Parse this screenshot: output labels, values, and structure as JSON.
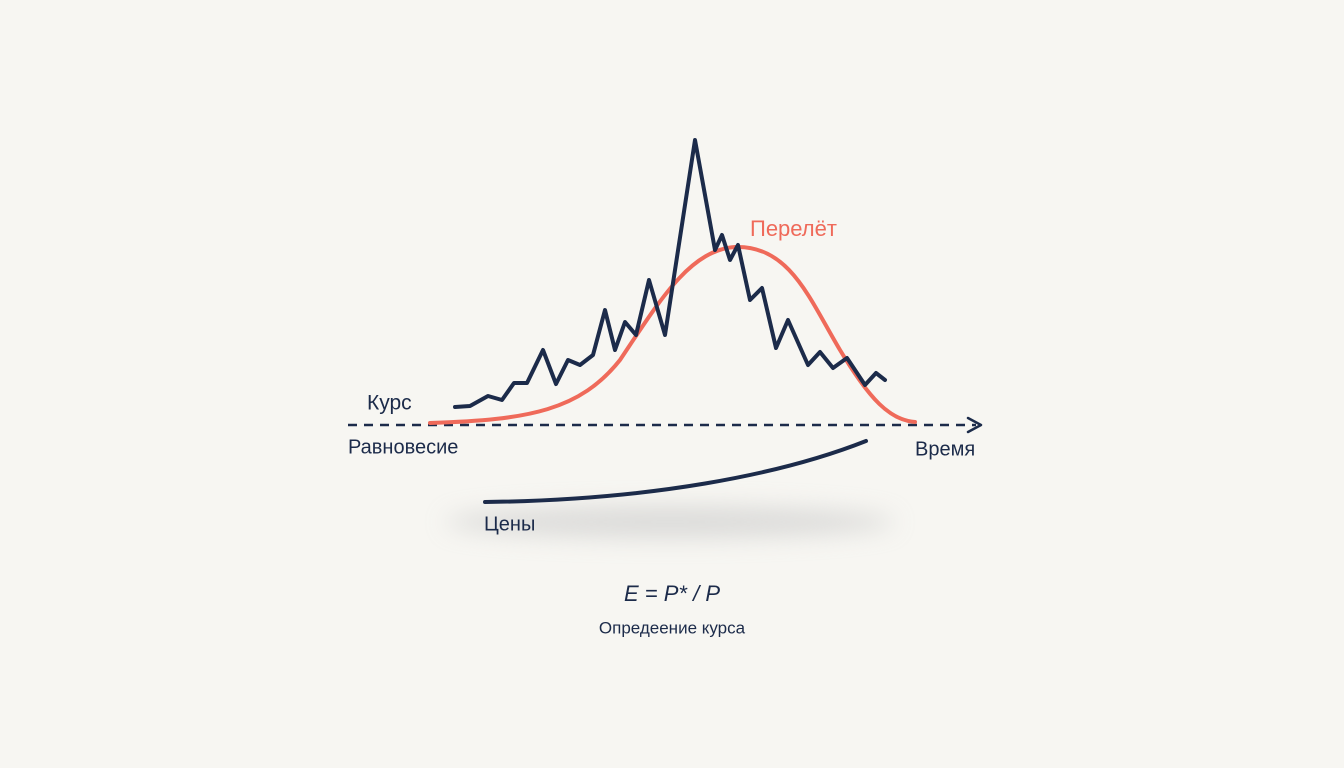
{
  "labels": {
    "overshoot": "Перелёт",
    "rate": "Курс",
    "equilibrium": "Равновесие",
    "time": "Время",
    "prices": "Цены"
  },
  "formula": {
    "expression": "E = P* / P",
    "caption": "Опредеение курса"
  }
}
